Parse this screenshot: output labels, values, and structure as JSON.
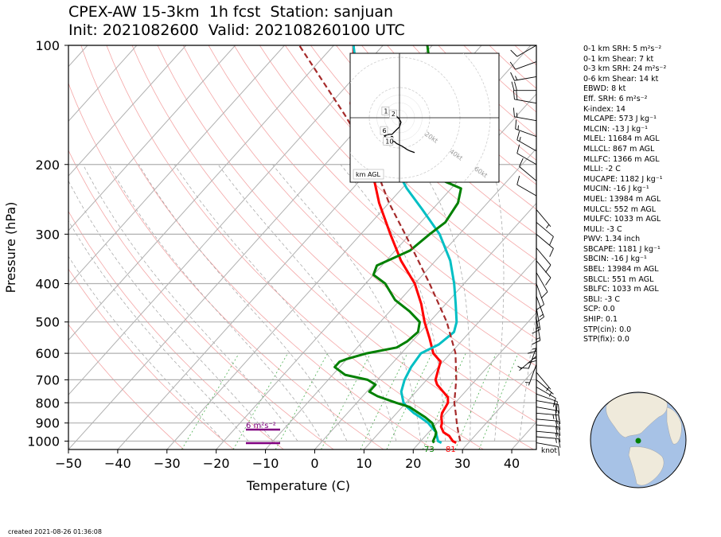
{
  "header": {
    "title_line1": "CPEX-AW 15-3km  1h fcst  Station: sanjuan",
    "title_line2": "Init: 2021082600  Valid: 202108260100 UTC"
  },
  "chart_data": {
    "type": "line",
    "subtype": "skew-T log-P sounding",
    "xlabel": "Temperature (C)",
    "ylabel": "Pressure (hPa)",
    "xlim": [
      -50,
      45
    ],
    "ylim": [
      1050,
      100
    ],
    "y_scale": "log",
    "x_ticks": [
      -50,
      -40,
      -30,
      -20,
      -10,
      0,
      10,
      20,
      30,
      40
    ],
    "x_tick_labels": [
      "−50",
      "−40",
      "−30",
      "−20",
      "−10",
      "0",
      "10",
      "20",
      "30",
      "40"
    ],
    "y_ticks": [
      100,
      200,
      300,
      400,
      500,
      600,
      700,
      800,
      900,
      1000
    ],
    "grid": true,
    "series": [
      {
        "color": "#ff0000",
        "points": [
          [
            1010,
            27.5
          ],
          [
            1000,
            26.5
          ],
          [
            970,
            24.8
          ],
          [
            950,
            23
          ],
          [
            920,
            21.5
          ],
          [
            900,
            21
          ],
          [
            870,
            19.8
          ],
          [
            850,
            19.2
          ],
          [
            820,
            18.8
          ],
          [
            800,
            18.5
          ],
          [
            775,
            17.5
          ],
          [
            750,
            15.5
          ],
          [
            720,
            13
          ],
          [
            700,
            11.8
          ],
          [
            660,
            10.5
          ],
          [
            630,
            9.5
          ],
          [
            600,
            6.5
          ],
          [
            550,
            3
          ],
          [
            500,
            -1
          ],
          [
            450,
            -5
          ],
          [
            400,
            -10
          ],
          [
            350,
            -17
          ],
          [
            300,
            -24
          ],
          [
            250,
            -32
          ],
          [
            220,
            -37
          ],
          [
            200,
            -41
          ],
          [
            180,
            -46
          ],
          [
            160,
            -51
          ],
          [
            140,
            -56
          ],
          [
            120,
            -60
          ],
          [
            110,
            -63
          ],
          [
            100,
            -66
          ]
        ]
      },
      {
        "color": "#00bfc4",
        "points": [
          [
            1010,
            24.5
          ],
          [
            1000,
            23.5
          ],
          [
            970,
            22.3
          ],
          [
            950,
            21.5
          ],
          [
            920,
            19.5
          ],
          [
            900,
            18.2
          ],
          [
            870,
            15.5
          ],
          [
            850,
            13.5
          ],
          [
            820,
            11
          ],
          [
            800,
            9.5
          ],
          [
            750,
            7
          ],
          [
            700,
            5.5
          ],
          [
            650,
            4.5
          ],
          [
            600,
            4
          ],
          [
            570,
            6
          ],
          [
            530,
            6.8
          ],
          [
            500,
            5.5
          ],
          [
            450,
            2
          ],
          [
            400,
            -2
          ],
          [
            350,
            -7
          ],
          [
            300,
            -14
          ],
          [
            260,
            -22
          ],
          [
            230,
            -29
          ],
          [
            200,
            -36
          ],
          [
            170,
            -44
          ],
          [
            150,
            -50
          ],
          [
            130,
            -56
          ],
          [
            115,
            -61
          ],
          [
            100,
            -66
          ]
        ]
      },
      {
        "color": "#008000",
        "points": [
          [
            1010,
            23
          ],
          [
            1000,
            22.5
          ],
          [
            970,
            22
          ],
          [
            950,
            21.5
          ],
          [
            920,
            20
          ],
          [
            900,
            19
          ],
          [
            870,
            16.5
          ],
          [
            850,
            14.5
          ],
          [
            820,
            11.5
          ],
          [
            800,
            8
          ],
          [
            770,
            3
          ],
          [
            750,
            0.5
          ],
          [
            720,
            0.5
          ],
          [
            700,
            -2
          ],
          [
            680,
            -7.5
          ],
          [
            650,
            -11
          ],
          [
            630,
            -11
          ],
          [
            620,
            -10
          ],
          [
            600,
            -7
          ],
          [
            580,
            -2
          ],
          [
            560,
            -1
          ],
          [
            530,
            -0.5
          ],
          [
            500,
            -2
          ],
          [
            470,
            -6
          ],
          [
            440,
            -11
          ],
          [
            400,
            -16
          ],
          [
            380,
            -20
          ],
          [
            360,
            -21
          ],
          [
            330,
            -17
          ],
          [
            300,
            -16
          ],
          [
            280,
            -15
          ],
          [
            250,
            -16
          ],
          [
            230,
            -18
          ],
          [
            220,
            -23
          ],
          [
            200,
            -24
          ],
          [
            170,
            -31
          ],
          [
            150,
            -37
          ],
          [
            130,
            -42
          ],
          [
            115,
            -46
          ],
          [
            100,
            -51
          ]
        ]
      },
      {
        "color": "#a52a2a",
        "dashed": true,
        "points": [
          [
            1000,
            28
          ],
          [
            950,
            26
          ],
          [
            900,
            24
          ],
          [
            850,
            22
          ],
          [
            800,
            19.8
          ],
          [
            700,
            16
          ],
          [
            600,
            11
          ],
          [
            500,
            3.5
          ],
          [
            400,
            -7
          ],
          [
            300,
            -21
          ],
          [
            250,
            -30
          ],
          [
            200,
            -40
          ],
          [
            150,
            -55
          ],
          [
            100,
            -77
          ]
        ]
      }
    ],
    "annotations": {
      "t_label": "81",
      "td_label": "73",
      "srh_box": "6 m²s⁻²",
      "wind_unit": "knot"
    },
    "wind_barbs": [
      {
        "p": 1010,
        "dir": 100,
        "spd": 12
      },
      {
        "p": 975,
        "dir": 95,
        "spd": 15
      },
      {
        "p": 945,
        "dir": 95,
        "spd": 18
      },
      {
        "p": 910,
        "dir": 95,
        "spd": 20
      },
      {
        "p": 880,
        "dir": 95,
        "spd": 22
      },
      {
        "p": 850,
        "dir": 95,
        "spd": 25
      },
      {
        "p": 820,
        "dir": 100,
        "spd": 22
      },
      {
        "p": 790,
        "dir": 100,
        "spd": 20
      },
      {
        "p": 760,
        "dir": 110,
        "spd": 15
      },
      {
        "p": 730,
        "dir": 120,
        "spd": 10
      },
      {
        "p": 700,
        "dir": 130,
        "spd": 5
      },
      {
        "p": 670,
        "dir": 140,
        "spd": 5
      },
      {
        "p": 640,
        "dir": 200,
        "spd": 5
      },
      {
        "p": 610,
        "dir": 230,
        "spd": 5
      },
      {
        "p": 580,
        "dir": 200,
        "spd": 10
      },
      {
        "p": 550,
        "dir": 180,
        "spd": 15
      },
      {
        "p": 520,
        "dir": 180,
        "spd": 15
      },
      {
        "p": 490,
        "dir": 170,
        "spd": 15
      },
      {
        "p": 460,
        "dir": 170,
        "spd": 15
      },
      {
        "p": 430,
        "dir": 160,
        "spd": 15
      },
      {
        "p": 400,
        "dir": 160,
        "spd": 10
      },
      {
        "p": 375,
        "dir": 150,
        "spd": 10
      },
      {
        "p": 350,
        "dir": 140,
        "spd": 10
      },
      {
        "p": 325,
        "dir": 140,
        "spd": 10
      },
      {
        "p": 300,
        "dir": 130,
        "spd": 10
      },
      {
        "p": 280,
        "dir": 130,
        "spd": 10
      },
      {
        "p": 260,
        "dir": 140,
        "spd": 5
      },
      {
        "p": 240,
        "dir": 300,
        "spd": 10
      },
      {
        "p": 220,
        "dir": 310,
        "spd": 10
      },
      {
        "p": 200,
        "dir": 300,
        "spd": 10
      },
      {
        "p": 185,
        "dir": 300,
        "spd": 15
      },
      {
        "p": 170,
        "dir": 290,
        "spd": 15
      },
      {
        "p": 155,
        "dir": 280,
        "spd": 15
      },
      {
        "p": 140,
        "dir": 280,
        "spd": 20
      },
      {
        "p": 130,
        "dir": 270,
        "spd": 20
      },
      {
        "p": 120,
        "dir": 260,
        "spd": 15
      },
      {
        "p": 110,
        "dir": 250,
        "spd": 10
      },
      {
        "p": 100,
        "dir": 240,
        "spd": 10
      }
    ],
    "hodograph": {
      "ring_labels": [
        "20kt",
        "40kt",
        "60kt",
        "80kt"
      ],
      "height_labels": [
        "1",
        "2",
        "6",
        "10"
      ],
      "legend": "km AGL",
      "points": [
        [
          -3,
          2
        ],
        [
          -2,
          1
        ],
        [
          0,
          -1
        ],
        [
          1,
          -3
        ],
        [
          0,
          -6
        ],
        [
          -3,
          -9
        ],
        [
          -5,
          -11
        ],
        [
          -7,
          -11
        ],
        [
          -10,
          -12
        ],
        [
          -8,
          -14
        ],
        [
          -5,
          -15
        ],
        [
          -3,
          -16
        ],
        [
          -2,
          -17
        ],
        [
          0,
          -18
        ],
        [
          2,
          -19
        ],
        [
          5,
          -21
        ],
        [
          7,
          -22
        ],
        [
          10,
          -23
        ]
      ],
      "storm_motion": [
        -5,
        -13
      ]
    }
  },
  "indices": [
    "0-1 km SRH: 5 m²s⁻²",
    "0-1 km Shear: 7 kt",
    "0-3 km SRH: 24 m²s⁻²",
    "0-6 km Shear: 14 kt",
    "EBWD: 8 kt",
    "Eff. SRH: 6 m²s⁻²",
    "K-index: 14",
    "MLCAPE: 573 J kg⁻¹",
    "MLCIN: -13 J kg⁻¹",
    "MLEL: 11684 m AGL",
    "MLLCL: 867 m AGL",
    "MLLFC: 1366 m AGL",
    "MLLI: -2 C",
    "MUCAPE: 1182 J kg⁻¹",
    "MUCIN: -16 J kg⁻¹",
    "MUEL: 13984 m AGL",
    "MULCL: 552 m AGL",
    "MULFC: 1033 m AGL",
    "MULI: -3 C",
    "PWV: 1.34 inch",
    "SBCAPE: 1181 J kg⁻¹",
    "SBCIN: -16 J kg⁻¹",
    "SBEL: 13984 m AGL",
    "SBLCL: 551 m AGL",
    "SBLFC: 1033 m AGL",
    "SBLI: -3 C",
    "SCP: 0.0",
    "SHIP: 0.1",
    "STP(cin): 0.0",
    "STP(fix): 0.0"
  ],
  "footer": {
    "created": "created 2021-08-26 01:36:08"
  }
}
